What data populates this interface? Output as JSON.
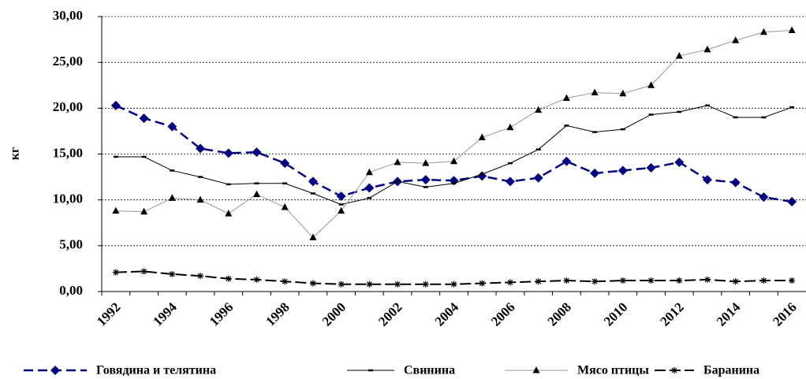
{
  "chart_data": {
    "type": "line",
    "y_label": "кг",
    "categories": [
      "1992",
      null,
      "1994",
      null,
      "1996",
      null,
      "1998",
      null,
      "2000",
      null,
      "2002",
      null,
      "2004",
      null,
      "2006",
      null,
      "2008",
      null,
      "2010",
      null,
      "2012",
      null,
      "2014",
      null,
      "2016"
    ],
    "ylim": [
      0,
      30
    ],
    "yticks": [
      {
        "value": 0,
        "label": "0,00"
      },
      {
        "value": 5,
        "label": "5,00"
      },
      {
        "value": 10,
        "label": "10,00"
      },
      {
        "value": 15,
        "label": "15,00"
      },
      {
        "value": 20,
        "label": "20,00"
      },
      {
        "value": 25,
        "label": "25,00"
      },
      {
        "value": 30,
        "label": "30,00"
      }
    ],
    "grid": true,
    "legend": "bottom",
    "series": [
      {
        "name": "Говядина и телятина",
        "color": "#000080",
        "marker": "diamond",
        "dash": "dashed",
        "values": [
          20.3,
          18.9,
          18.0,
          15.6,
          15.1,
          15.2,
          14.0,
          12.0,
          10.4,
          11.3,
          12.0,
          12.2,
          12.1,
          12.6,
          12.0,
          12.4,
          14.2,
          12.9,
          13.2,
          13.5,
          14.1,
          12.2,
          11.9,
          10.3,
          9.8
        ]
      },
      {
        "name": "Свинина",
        "color": "#000000",
        "marker": "dash",
        "dash": "solid",
        "values": [
          14.7,
          14.7,
          13.2,
          12.5,
          11.7,
          11.8,
          11.8,
          10.7,
          9.5,
          10.2,
          12.0,
          11.4,
          11.8,
          12.8,
          14.0,
          15.5,
          18.1,
          17.4,
          17.7,
          19.3,
          19.6,
          20.3,
          19.0,
          19.0,
          20.1
        ]
      },
      {
        "name": "Мясо птицы",
        "color": "#999999",
        "marker": "triangle",
        "dash": "solid",
        "values": [
          8.8,
          8.7,
          10.2,
          10.0,
          8.5,
          10.6,
          9.2,
          5.9,
          8.8,
          13.0,
          14.1,
          14.0,
          14.2,
          16.8,
          17.9,
          19.8,
          21.1,
          21.7,
          21.6,
          22.5,
          25.7,
          26.4,
          27.4,
          28.3,
          28.5
        ]
      },
      {
        "name": "Баранина",
        "color": "#000000",
        "marker": "star",
        "dash": "longdash",
        "values": [
          2.1,
          2.2,
          1.9,
          1.7,
          1.4,
          1.3,
          1.1,
          0.9,
          0.8,
          0.8,
          0.8,
          0.8,
          0.8,
          0.9,
          1.0,
          1.1,
          1.2,
          1.1,
          1.2,
          1.2,
          1.2,
          1.3,
          1.1,
          1.2,
          1.2
        ]
      }
    ]
  }
}
